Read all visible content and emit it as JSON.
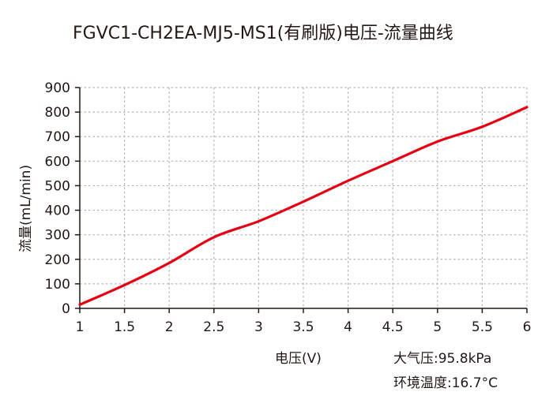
{
  "chart_data": {
    "type": "line",
    "title": "FGVC1-CH2EA-MJ5-MS1(有刷版)电压-流量曲线",
    "xlabel": "电压(V)",
    "ylabel": "流量(mL/min)",
    "xlim": [
      1,
      6
    ],
    "ylim": [
      0,
      900
    ],
    "x_ticks": [
      "1",
      "1.5",
      "2",
      "2.5",
      "3",
      "3.5",
      "4",
      "4.5",
      "5",
      "5.5",
      "6"
    ],
    "y_ticks": [
      "0",
      "100",
      "200",
      "300",
      "400",
      "500",
      "600",
      "700",
      "800",
      "900"
    ],
    "grid": true,
    "series": [
      {
        "color": "#e50012",
        "x": [
          1,
          1.5,
          2,
          2.5,
          3,
          3.5,
          4,
          4.5,
          5,
          5.5,
          6
        ],
        "y": [
          15,
          95,
          185,
          290,
          355,
          435,
          520,
          600,
          680,
          740,
          820
        ]
      }
    ],
    "annotations": [
      "大气压:95.8kPa",
      "环境温度:16.7°C"
    ]
  }
}
